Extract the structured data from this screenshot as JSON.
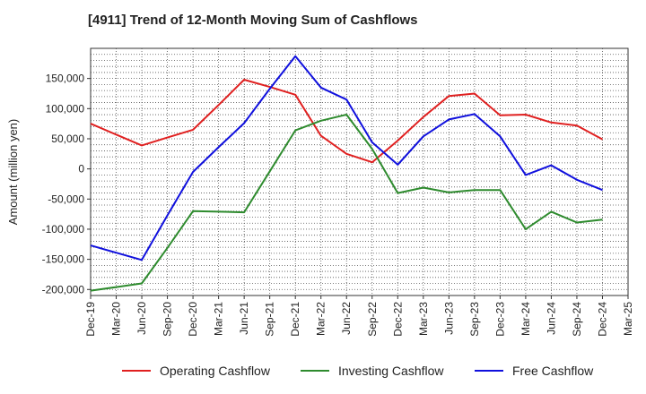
{
  "chart_data": {
    "type": "line",
    "title": "[4911]  Trend of 12-Month Moving Sum of Cashflows",
    "xlabel": "",
    "ylabel": "Amount (million yen)",
    "ylim": [
      -210000,
      200000
    ],
    "yticks": [
      150000,
      100000,
      50000,
      0,
      -50000,
      -100000,
      -150000,
      -200000
    ],
    "ytick_labels": [
      "150,000",
      "100,000",
      "50,000",
      "0",
      "-50,000",
      "-100,000",
      "-150,000",
      "-200,000"
    ],
    "grid": true,
    "legend_position": "bottom",
    "x": [
      "Dec-19",
      "Mar-20",
      "Jun-20",
      "Sep-20",
      "Dec-20",
      "Mar-21",
      "Jun-21",
      "Sep-21",
      "Dec-21",
      "Mar-22",
      "Jun-22",
      "Sep-22",
      "Dec-22",
      "Mar-23",
      "Jun-23",
      "Sep-23",
      "Dec-23",
      "Mar-24",
      "Jun-24",
      "Sep-24",
      "Dec-24",
      "Mar-25"
    ],
    "series": [
      {
        "name": "Operating Cashflow",
        "color": "#e02020",
        "values": [
          75000,
          57000,
          39000,
          52000,
          65000,
          106000,
          148000,
          136000,
          123000,
          55000,
          25000,
          11000,
          47000,
          86000,
          121000,
          125000,
          89000,
          90000,
          77000,
          72000,
          49000,
          null
        ]
      },
      {
        "name": "Investing Cashflow",
        "color": "#2e8b2e",
        "values": [
          -202000,
          -196000,
          -190000,
          -131000,
          -70000,
          -71000,
          -72000,
          -4000,
          64000,
          80000,
          90000,
          33000,
          -40000,
          -31000,
          -39000,
          -35000,
          -35000,
          -100000,
          -71000,
          -89000,
          -84000,
          null
        ]
      },
      {
        "name": "Free Cashflow",
        "color": "#1010dd",
        "values": [
          -127000,
          -139000,
          -151000,
          -77000,
          -5000,
          36000,
          76000,
          133000,
          187000,
          135000,
          115000,
          44000,
          7000,
          54000,
          82000,
          91000,
          54000,
          -10000,
          6000,
          -18000,
          -35000,
          null
        ]
      }
    ]
  }
}
